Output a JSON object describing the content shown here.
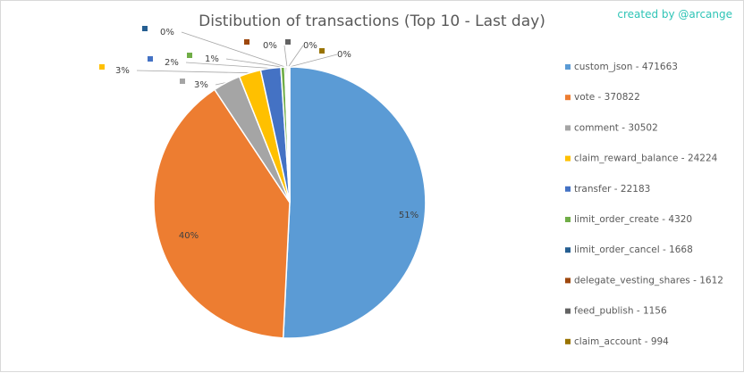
{
  "credit": "created by @arcange",
  "chart_data": {
    "type": "pie",
    "title": "Distibution of transactions (Top 10 - Last day)",
    "legend_position": "right",
    "slices": [
      {
        "name": "custom_json",
        "value": 471663,
        "legend": "custom_json - 471663",
        "label": "51%",
        "color": "#5b9bd5"
      },
      {
        "name": "vote",
        "value": 370822,
        "legend": "vote - 370822",
        "label": "40%",
        "color": "#ed7d31"
      },
      {
        "name": "comment",
        "value": 30502,
        "legend": "comment - 30502",
        "label": "3%",
        "color": "#a5a5a5"
      },
      {
        "name": "claim_reward_balance",
        "value": 24224,
        "legend": "claim_reward_balance - 24224",
        "label": "3%",
        "color": "#ffc000"
      },
      {
        "name": "transfer",
        "value": 22183,
        "legend": "transfer - 22183",
        "label": "2%",
        "color": "#4472c4"
      },
      {
        "name": "limit_order_create",
        "value": 4320,
        "legend": "limit_order_create - 4320",
        "label": "1%",
        "color": "#70ad47"
      },
      {
        "name": "limit_order_cancel",
        "value": 1668,
        "legend": "limit_order_cancel - 1668",
        "label": "0%",
        "color": "#255e91"
      },
      {
        "name": "delegate_vesting_shares",
        "value": 1612,
        "legend": "delegate_vesting_shares - 1612",
        "label": "0%",
        "color": "#9e480e"
      },
      {
        "name": "feed_publish",
        "value": 1156,
        "legend": "feed_publish - 1156",
        "label": "0%",
        "color": "#636363"
      },
      {
        "name": "claim_account",
        "value": 994,
        "legend": "claim_account - 994",
        "label": "0%",
        "color": "#997300"
      }
    ]
  }
}
